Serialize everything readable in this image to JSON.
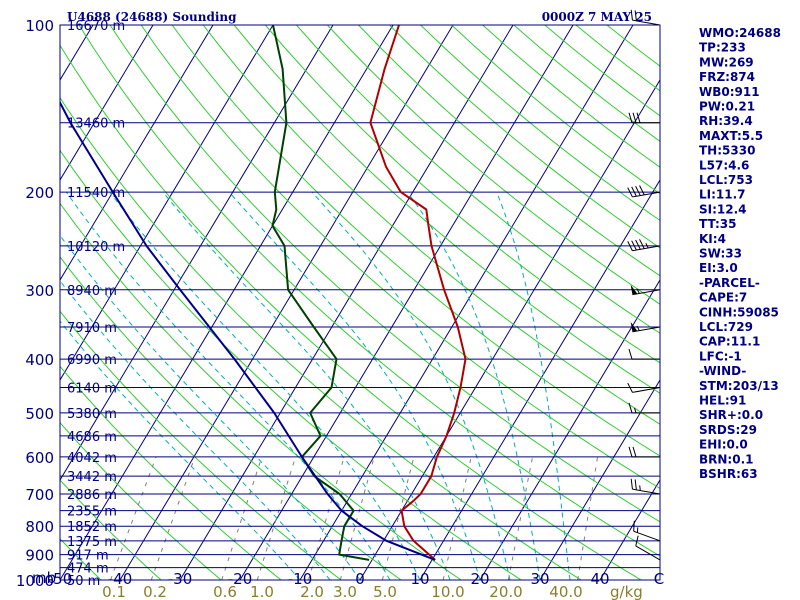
{
  "header": {
    "title": "U4688 (24688) Sounding",
    "datetime": "0000Z  7 MAY 25"
  },
  "axes": {
    "p_unit": "mb",
    "mr_unit": "g/kg"
  },
  "chart_data": {
    "type": "line",
    "title": "U4688 (24688) Sounding",
    "subtype": "skew-T log-P",
    "x_axis": {
      "label": "",
      "ticks": [
        -50,
        -40,
        -30,
        -20,
        -10,
        0,
        10,
        20,
        30,
        40
      ],
      "range": [
        -50,
        50
      ]
    },
    "y_axis": {
      "label": "mb",
      "scale": "log",
      "ticks": [
        100,
        200,
        300,
        400,
        500,
        600,
        700,
        800,
        900,
        1000
      ],
      "range": [
        100,
        1000
      ]
    },
    "height_labels": [
      {
        "p": 100,
        "label": "16670 m"
      },
      {
        "p": 150,
        "label": "13460 m"
      },
      {
        "p": 200,
        "label": "11540 m"
      },
      {
        "p": 250,
        "label": "10120 m"
      },
      {
        "p": 300,
        "label": "8940 m"
      },
      {
        "p": 350,
        "label": "7910 m"
      },
      {
        "p": 400,
        "label": "6990 m"
      },
      {
        "p": 450,
        "label": "6140 m"
      },
      {
        "p": 500,
        "label": "5380 m"
      },
      {
        "p": 550,
        "label": "4686 m"
      },
      {
        "p": 600,
        "label": "4042 m"
      },
      {
        "p": 650,
        "label": "3442 m"
      },
      {
        "p": 700,
        "label": "2886 m"
      },
      {
        "p": 750,
        "label": "2355 m"
      },
      {
        "p": 800,
        "label": "1852 m"
      },
      {
        "p": 850,
        "label": "1375 m"
      },
      {
        "p": 900,
        "label": "917 m"
      },
      {
        "p": 950,
        "label": "474 m"
      },
      {
        "p": 1000,
        "label": "50 m"
      }
    ],
    "mixing_ratio_ticks": [
      "0.1",
      "0.2",
      "0.6",
      "1.0",
      "2.0",
      "3.0",
      "5.0",
      "10.0",
      "20.0",
      "40.0"
    ],
    "series": [
      {
        "name": "Temperature",
        "color": "#b00000",
        "points": [
          {
            "p": 920,
            "t": 10.5
          },
          {
            "p": 900,
            "t": 9
          },
          {
            "p": 850,
            "t": 5
          },
          {
            "p": 800,
            "t": 2
          },
          {
            "p": 750,
            "t": 0
          },
          {
            "p": 720,
            "t": 1
          },
          {
            "p": 700,
            "t": 1.5
          },
          {
            "p": 650,
            "t": 1.5
          },
          {
            "p": 600,
            "t": 0.5
          },
          {
            "p": 550,
            "t": 0
          },
          {
            "p": 500,
            "t": -1
          },
          {
            "p": 450,
            "t": -2.5
          },
          {
            "p": 400,
            "t": -4.5
          },
          {
            "p": 350,
            "t": -9
          },
          {
            "p": 300,
            "t": -15
          },
          {
            "p": 250,
            "t": -21.5
          },
          {
            "p": 230,
            "t": -24
          },
          {
            "p": 215,
            "t": -26
          },
          {
            "p": 200,
            "t": -32
          },
          {
            "p": 180,
            "t": -37
          },
          {
            "p": 150,
            "t": -44
          },
          {
            "p": 120,
            "t": -47
          },
          {
            "p": 100,
            "t": -49
          }
        ]
      },
      {
        "name": "Dewpoint",
        "color": "#004000",
        "points": [
          {
            "p": 920,
            "t": -0.5
          },
          {
            "p": 900,
            "t": -6
          },
          {
            "p": 850,
            "t": -7
          },
          {
            "p": 800,
            "t": -8
          },
          {
            "p": 750,
            "t": -8
          },
          {
            "p": 700,
            "t": -12
          },
          {
            "p": 650,
            "t": -18
          },
          {
            "p": 600,
            "t": -22
          },
          {
            "p": 550,
            "t": -21
          },
          {
            "p": 500,
            "t": -25
          },
          {
            "p": 450,
            "t": -24
          },
          {
            "p": 400,
            "t": -26
          },
          {
            "p": 350,
            "t": -33
          },
          {
            "p": 300,
            "t": -41
          },
          {
            "p": 250,
            "t": -46
          },
          {
            "p": 230,
            "t": -50
          },
          {
            "p": 215,
            "t": -51
          },
          {
            "p": 200,
            "t": -53
          },
          {
            "p": 150,
            "t": -58
          },
          {
            "p": 120,
            "t": -64
          },
          {
            "p": 100,
            "t": -70
          }
        ]
      },
      {
        "name": "Parcel",
        "color": "#00008b",
        "points": [
          {
            "p": 920,
            "t": 10.5
          },
          {
            "p": 850,
            "t": 0.5
          },
          {
            "p": 800,
            "t": -5
          },
          {
            "p": 750,
            "t": -10
          },
          {
            "p": 700,
            "t": -14
          },
          {
            "p": 600,
            "t": -22
          },
          {
            "p": 500,
            "t": -31
          },
          {
            "p": 400,
            "t": -43
          },
          {
            "p": 300,
            "t": -59
          },
          {
            "p": 250,
            "t": -69
          },
          {
            "p": 200,
            "t": -80
          },
          {
            "p": 150,
            "t": -94
          },
          {
            "p": 120,
            "t": -104
          }
        ]
      }
    ],
    "wind_barbs": [
      {
        "p": 920,
        "dir": 300,
        "spd": 10
      },
      {
        "p": 850,
        "dir": 290,
        "spd": 15
      },
      {
        "p": 700,
        "dir": 280,
        "spd": 25
      },
      {
        "p": 600,
        "dir": 270,
        "spd": 20
      },
      {
        "p": 500,
        "dir": 270,
        "spd": 15
      },
      {
        "p": 450,
        "dir": 260,
        "spd": 10
      },
      {
        "p": 400,
        "dir": 270,
        "spd": 10
      },
      {
        "p": 350,
        "dir": 260,
        "spd": 55
      },
      {
        "p": 300,
        "dir": 260,
        "spd": 55
      },
      {
        "p": 250,
        "dir": 260,
        "spd": 45
      },
      {
        "p": 200,
        "dir": 260,
        "spd": 40
      },
      {
        "p": 150,
        "dir": 270,
        "spd": 30
      },
      {
        "p": 100,
        "dir": 280,
        "spd": 20
      }
    ]
  },
  "side_params": [
    "WMO:24688",
    "TP:233",
    "MW:269",
    "FRZ:874",
    "WB0:911",
    "PW:0.21",
    "RH:39.4",
    "MAXT:5.5",
    "TH:5330",
    "L57:4.6",
    "LCL:753",
    "LI:11.7",
    "SI:12.4",
    "TT:35",
    "KI:4",
    "SW:33",
    "EI:3.0",
    "-PARCEL-",
    "CAPE:7",
    "CINH:59085",
    "LCL:729",
    "CAP:11.1",
    "LFC:-1",
    "-WIND-",
    "STM:203/13",
    "HEL:91",
    "SHR+:0.0",
    "SRDS:29",
    "EHI:0.0",
    "BRN:0.1",
    "BSHR:63"
  ],
  "colors": {
    "frame": "#000080",
    "isotherm": "#000080",
    "dry_adiabat": "#32cd32",
    "moist_adiabat": "#00b0b0",
    "mixing_ratio": "#808080",
    "temperature": "#b00000",
    "dewpoint": "#004000",
    "parcel": "#00008b",
    "mr_label": "#8b7d2b"
  }
}
